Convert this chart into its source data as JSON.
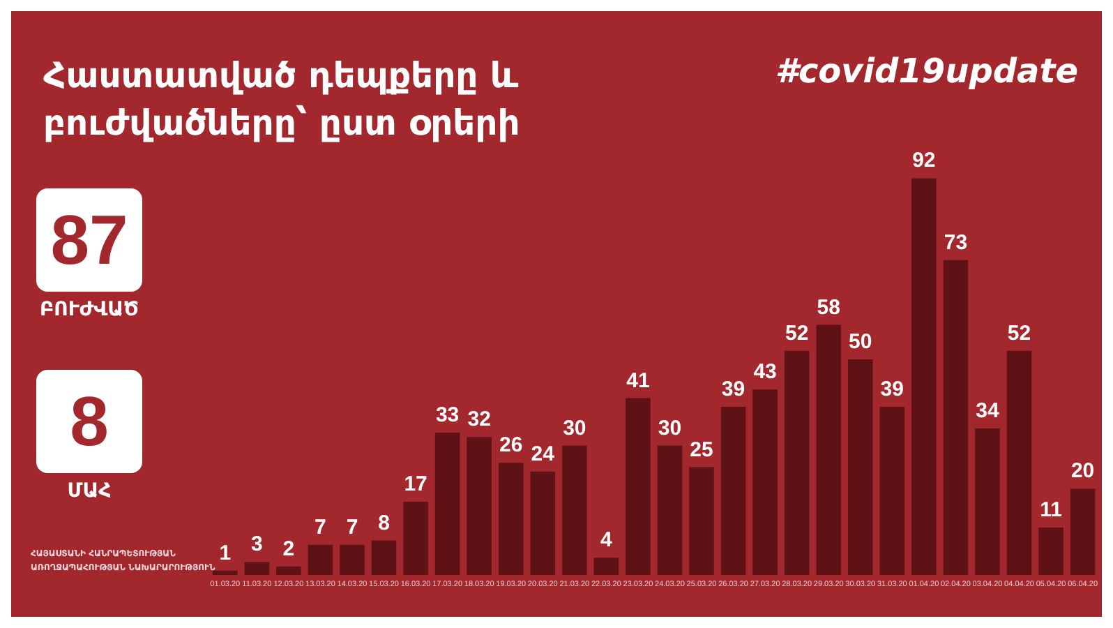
{
  "chart_data": {
    "type": "bar",
    "title": "Հաստատված դեպքերը և\nբուժվածները՝ ըստ օրերի",
    "subtitle": "#covid19update",
    "categories": [
      "01.03.20",
      "11.03.20",
      "12.03.20",
      "13.03.20",
      "14.03.20",
      "15.03.20",
      "16.03.20",
      "17.03.20",
      "18.03.20",
      "19.03.20",
      "20.03.20",
      "21.03.20",
      "22.03.20",
      "23.03.20",
      "24.03.20",
      "25.03.20",
      "26.03.20",
      "27.03.20",
      "28.03.20",
      "29.03.20",
      "30.03.20",
      "31.03.20",
      "01.04.20",
      "02.04.20",
      "03.04.20",
      "04.04.20",
      "05.04.20",
      "06.04.20"
    ],
    "values": [
      1,
      3,
      2,
      7,
      7,
      8,
      17,
      33,
      32,
      26,
      24,
      30,
      4,
      41,
      30,
      25,
      39,
      43,
      52,
      58,
      50,
      39,
      92,
      73,
      34,
      52,
      11,
      20
    ],
    "color": "#5e1216",
    "data_labels": true,
    "annotations": [
      "87",
      "ԲՈՒԺՎԱԾ",
      "8",
      "ՄԱՀ",
      "ՀԱՅԱՍՏԱՆԻ ՀԱՆՐԱՊԵՏՈՒԹՅԱՆ\nԱՌՈՂՋԱՊԱՀՈՒԹՅԱՆ ՆԱԽԱՐԱՐՈՒԹՅՈՒՆ"
    ]
  }
}
